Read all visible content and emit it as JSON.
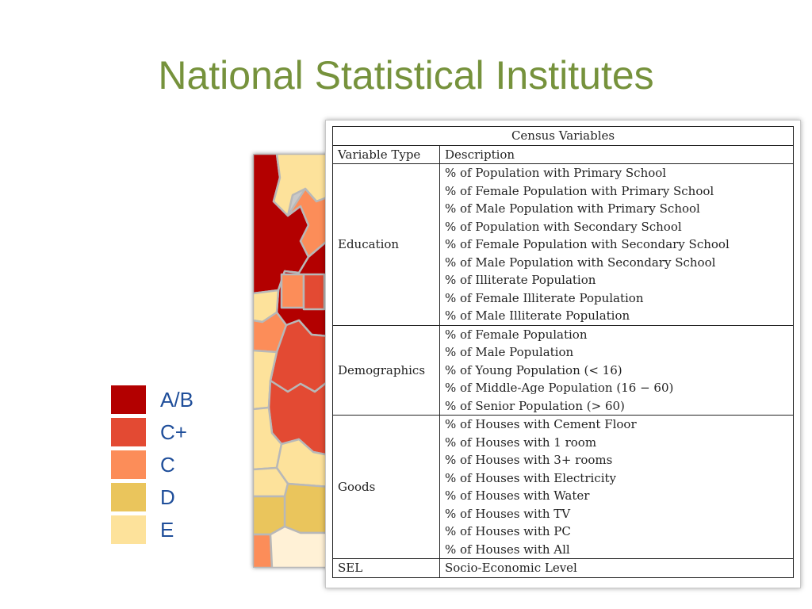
{
  "slide": {
    "title": "National Statistical Institutes"
  },
  "legend": {
    "items": [
      {
        "label": "A/B",
        "color": "#b30000"
      },
      {
        "label": "C+",
        "color": "#e34a33"
      },
      {
        "label": "C",
        "color": "#fc8d59"
      },
      {
        "label": "D",
        "color": "#eac55c"
      },
      {
        "label": "E",
        "color": "#fde29b"
      }
    ]
  },
  "table": {
    "caption": "Census Variables",
    "headers": {
      "type": "Variable Type",
      "description": "Description"
    },
    "groups": [
      {
        "type": "Education",
        "items": [
          "% of Population with Primary School",
          "% of Female Population with Primary School",
          "% of Male Population with Primary School",
          "% of Population with Secondary School",
          "% of Female Population with Secondary School",
          "% of Male Population with Secondary School",
          "% of Illiterate Population",
          "% of Female Illiterate Population",
          "% of Male Illiterate Population"
        ]
      },
      {
        "type": "Demographics",
        "items": [
          "% of Female Population",
          "% of Male Population",
          "% of Young Population (< 16)",
          "% of Middle-Age Population (16 − 60)",
          "% of Senior Population (> 60)"
        ]
      },
      {
        "type": "Goods",
        "items": [
          "% of Houses with Cement Floor",
          "% of Houses with 1 room",
          "% of Houses with 3+ rooms",
          "% of Houses with Electricity",
          "% of Houses with Water",
          "% of Houses with TV",
          "% of Houses with PC",
          "% of Houses with All"
        ]
      },
      {
        "type": "SEL",
        "items": [
          "Socio-Economic Level"
        ]
      }
    ]
  }
}
